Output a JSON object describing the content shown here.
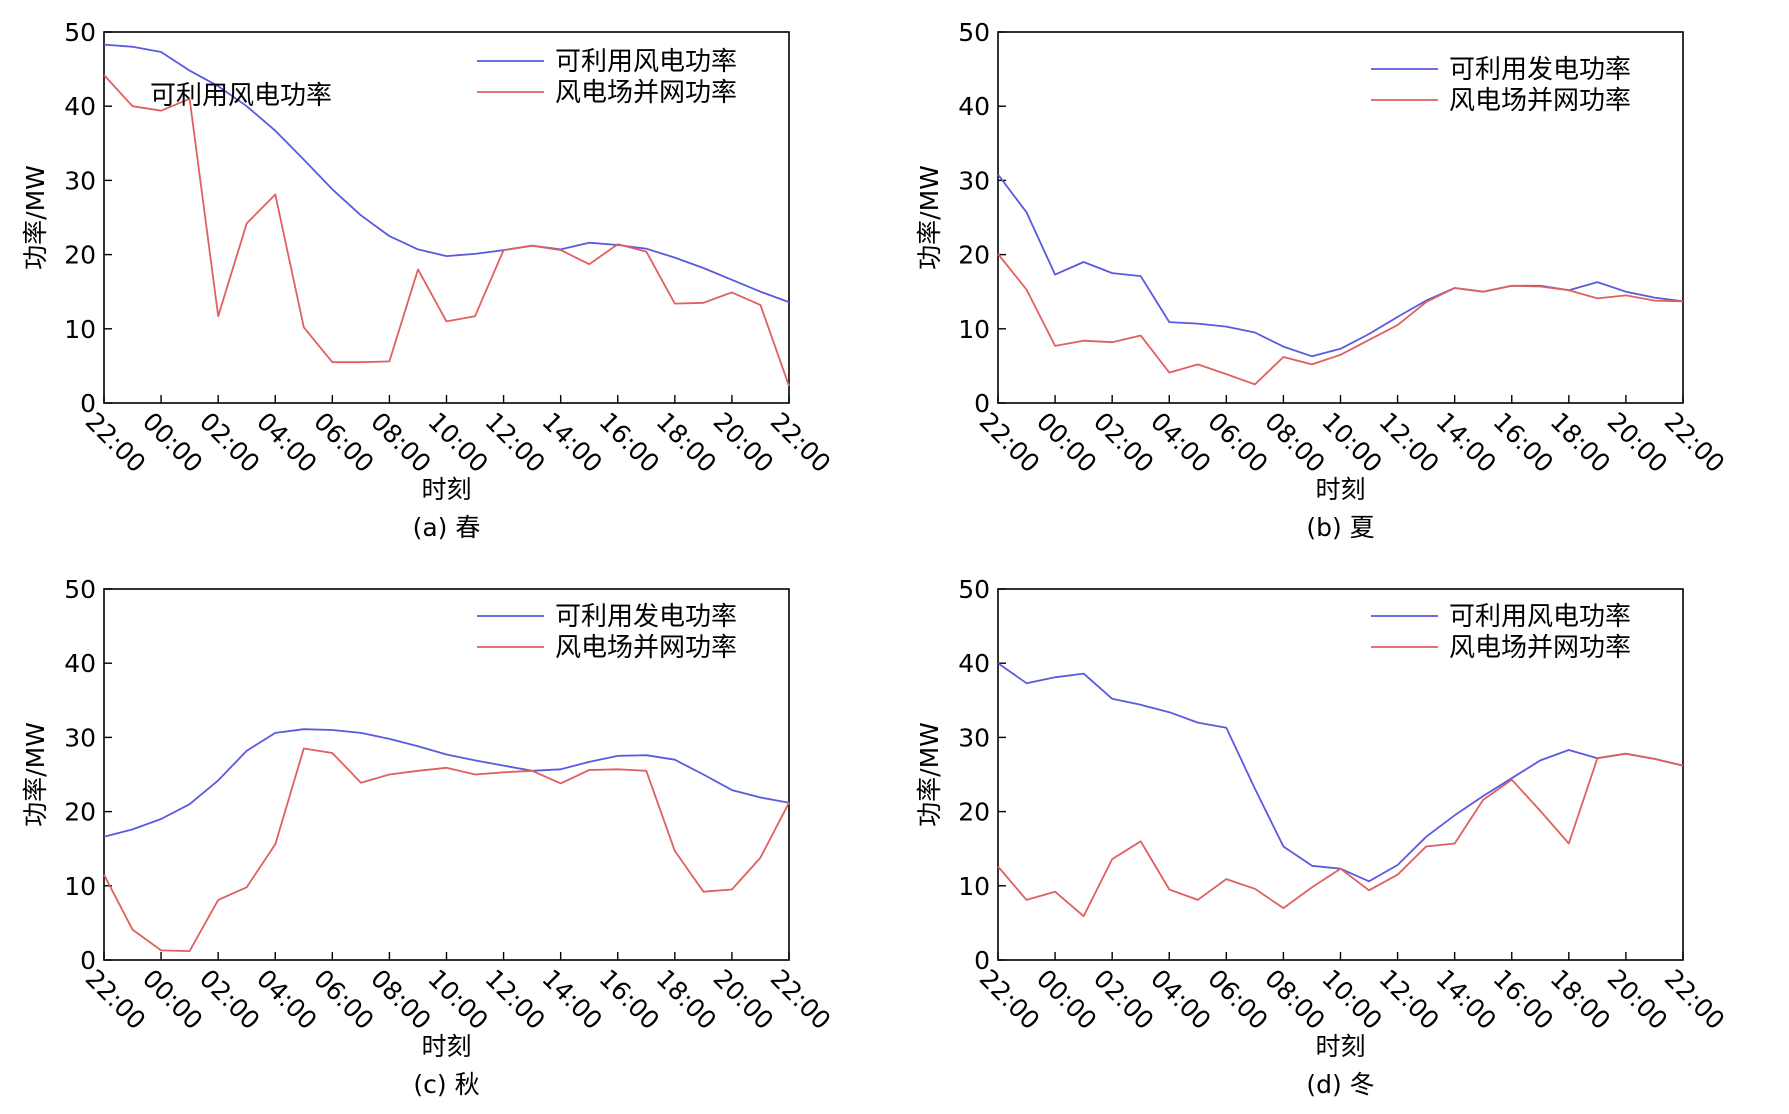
{
  "chart_data": [
    {
      "type": "line",
      "caption": "(a) 春",
      "xlabel": "时刻",
      "ylabel": "功率/MW",
      "ylim": [
        0,
        50
      ],
      "yticks": [
        "0",
        "10",
        "20",
        "30",
        "40",
        "50"
      ],
      "xticks": [
        "22:00",
        "00:00",
        "02:00",
        "04:00",
        "06:00",
        "08:00",
        "10:00",
        "12:00",
        "14:00",
        "16:00",
        "18:00",
        "20:00",
        "22:00"
      ],
      "legend_position": "top-right",
      "annotation": "可利用风电功率",
      "series": [
        {
          "name": "可利用风电功率",
          "color": "#5a5ae0",
          "values": [
            48.3,
            48.0,
            47.3,
            44.8,
            42.7,
            40.0,
            36.7,
            32.8,
            28.8,
            25.3,
            22.5,
            20.7,
            19.8,
            20.1,
            20.6,
            21.2,
            20.7,
            21.6,
            21.3,
            20.8,
            19.6,
            18.2,
            16.6,
            15.0,
            13.6
          ]
        },
        {
          "name": "风电场并网功率",
          "color": "#e0605f",
          "values": [
            44.2,
            40.0,
            39.4,
            41.0,
            11.7,
            24.2,
            28.1,
            10.2,
            5.5,
            5.5,
            5.6,
            18.0,
            11.0,
            11.7,
            20.6,
            21.2,
            20.6,
            18.7,
            21.4,
            20.4,
            13.4,
            13.5,
            14.9,
            13.2,
            2.3
          ]
        }
      ]
    },
    {
      "type": "line",
      "caption": "(b) 夏",
      "xlabel": "时刻",
      "ylabel": "功率/MW",
      "ylim": [
        0,
        50
      ],
      "yticks": [
        "0",
        "10",
        "20",
        "30",
        "40",
        "50"
      ],
      "xticks": [
        "22:00",
        "00:00",
        "02:00",
        "04:00",
        "06:00",
        "08:00",
        "10:00",
        "12:00",
        "14:00",
        "16:00",
        "18:00",
        "20:00",
        "22:00"
      ],
      "legend_position": "top-right",
      "series": [
        {
          "name": "可利用发电功率",
          "color": "#5a5ae0",
          "values": [
            30.8,
            25.7,
            17.3,
            19.0,
            17.5,
            17.1,
            10.9,
            10.7,
            10.3,
            9.5,
            7.6,
            6.3,
            7.3,
            9.3,
            11.6,
            13.8,
            15.5,
            15.0,
            15.8,
            15.8,
            15.2,
            16.3,
            15.0,
            14.2,
            13.7
          ]
        },
        {
          "name": "风电场并网功率",
          "color": "#e0605f",
          "values": [
            20.1,
            15.3,
            7.7,
            8.4,
            8.2,
            9.1,
            4.1,
            5.2,
            3.9,
            2.5,
            6.2,
            5.2,
            6.5,
            8.5,
            10.5,
            13.6,
            15.5,
            15.0,
            15.8,
            15.7,
            15.2,
            14.1,
            14.5,
            13.8,
            13.7
          ]
        }
      ]
    },
    {
      "type": "line",
      "caption": "(c) 秋",
      "xlabel": "时刻",
      "ylabel": "功率/MW",
      "ylim": [
        0,
        50
      ],
      "yticks": [
        "0",
        "10",
        "20",
        "30",
        "40",
        "50"
      ],
      "xticks": [
        "22:00",
        "00:00",
        "02:00",
        "04:00",
        "06:00",
        "08:00",
        "10:00",
        "12:00",
        "14:00",
        "16:00",
        "18:00",
        "20:00",
        "22:00"
      ],
      "legend_position": "top-right",
      "series": [
        {
          "name": "可利用发电功率",
          "color": "#5a5ae0",
          "values": [
            16.6,
            17.6,
            19.0,
            21.0,
            24.2,
            28.2,
            30.6,
            31.1,
            31.0,
            30.6,
            29.8,
            28.8,
            27.7,
            26.9,
            26.2,
            25.5,
            25.7,
            26.7,
            27.5,
            27.6,
            27.0,
            25.0,
            22.9,
            21.9,
            21.2
          ]
        },
        {
          "name": "风电场并网功率",
          "color": "#e0605f",
          "values": [
            11.5,
            4.1,
            1.3,
            1.2,
            8.1,
            9.8,
            15.6,
            28.5,
            27.9,
            23.9,
            25.0,
            25.5,
            25.9,
            25.0,
            25.3,
            25.5,
            23.8,
            25.6,
            25.7,
            25.5,
            14.7,
            9.2,
            9.5,
            13.8,
            21.2
          ]
        }
      ]
    },
    {
      "type": "line",
      "caption": "(d) 冬",
      "xlabel": "时刻",
      "ylabel": "功率/MW",
      "ylim": [
        0,
        50
      ],
      "yticks": [
        "0",
        "10",
        "20",
        "30",
        "40",
        "50"
      ],
      "xticks": [
        "22:00",
        "00:00",
        "02:00",
        "04:00",
        "06:00",
        "08:00",
        "10:00",
        "12:00",
        "14:00",
        "16:00",
        "18:00",
        "20:00",
        "22:00"
      ],
      "legend_position": "top-right",
      "series": [
        {
          "name": "可利用风电功率",
          "color": "#5a5ae0",
          "values": [
            40.0,
            37.3,
            38.1,
            38.6,
            35.2,
            34.4,
            33.4,
            32.0,
            31.3,
            23.1,
            15.3,
            12.7,
            12.3,
            10.6,
            12.8,
            16.6,
            19.5,
            22.1,
            24.5,
            26.9,
            28.3,
            27.2,
            27.8,
            27.1,
            26.2
          ]
        },
        {
          "name": "风电场并网功率",
          "color": "#e0605f",
          "values": [
            12.6,
            8.1,
            9.2,
            5.9,
            13.6,
            16.0,
            9.5,
            8.1,
            10.9,
            9.6,
            7.0,
            9.8,
            12.3,
            9.4,
            11.5,
            15.3,
            15.7,
            21.6,
            24.3,
            20.1,
            15.7,
            27.2,
            27.8,
            27.1,
            26.2
          ]
        }
      ]
    }
  ]
}
